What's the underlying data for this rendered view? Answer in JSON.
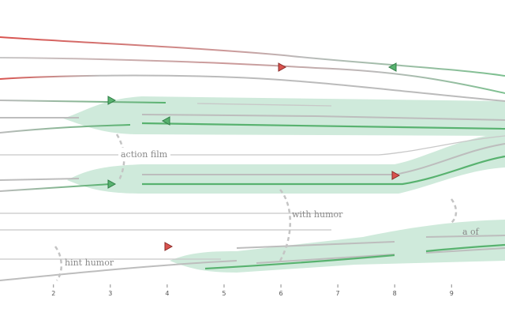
{
  "chart_data": {
    "type": "storyline",
    "xlim": [
      1.06,
      9.94
    ],
    "xticks": [
      2,
      3,
      4,
      5,
      6,
      7,
      8,
      9
    ],
    "annotations": [
      "action film",
      "with humor",
      "hint humor",
      "a of"
    ]
  }
}
